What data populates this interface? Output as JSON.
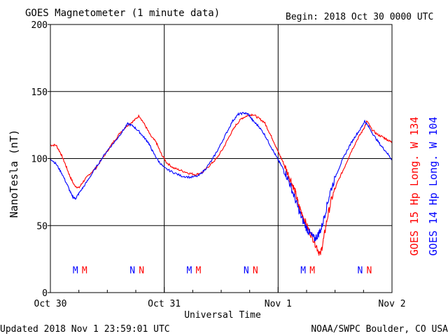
{
  "header": {
    "title": "GOES Magnetometer (1 minute data)",
    "begin": "Begin:  2018 Oct 30 0000 UTC"
  },
  "footer": {
    "updated": "Updated 2018 Nov  1 23:59:01 UTC",
    "source": "NOAA/SWPC Boulder, CO USA"
  },
  "colors": {
    "series1": "#ff0000",
    "series2": "#0000ff",
    "axis": "#000000"
  },
  "chart_data": {
    "type": "line",
    "title": "GOES Magnetometer (1 minute data)",
    "xlabel": "Universal Time",
    "ylabel": "NanoTesla (nT)",
    "xlim": [
      0,
      3
    ],
    "ylim": [
      0,
      200
    ],
    "x_unit": "days since 2018 Oct 30 0000 UTC",
    "x_tick_labels": [
      "Oct 30",
      "Oct 31",
      "Nov 1",
      "Nov 2"
    ],
    "y_ticks": [
      0,
      50,
      100,
      150,
      200
    ],
    "grid": true,
    "legend_position": "right (vertical text)",
    "series": [
      {
        "name": "GOES 15 Hp  Long. W 134",
        "color": "#ff0000",
        "points": [
          [
            0.0,
            110
          ],
          [
            0.05,
            110
          ],
          [
            0.09,
            104
          ],
          [
            0.13,
            96
          ],
          [
            0.17,
            87
          ],
          [
            0.21,
            80
          ],
          [
            0.25,
            78
          ],
          [
            0.29,
            83
          ],
          [
            0.34,
            88
          ],
          [
            0.4,
            93
          ],
          [
            0.48,
            103
          ],
          [
            0.55,
            112
          ],
          [
            0.62,
            120
          ],
          [
            0.68,
            125
          ],
          [
            0.73,
            128
          ],
          [
            0.78,
            132
          ],
          [
            0.83,
            125
          ],
          [
            0.88,
            117
          ],
          [
            0.93,
            112
          ],
          [
            0.97,
            104
          ],
          [
            1.02,
            97
          ],
          [
            1.08,
            93
          ],
          [
            1.15,
            91
          ],
          [
            1.22,
            89
          ],
          [
            1.28,
            88
          ],
          [
            1.34,
            90
          ],
          [
            1.4,
            95
          ],
          [
            1.46,
            100
          ],
          [
            1.52,
            108
          ],
          [
            1.58,
            118
          ],
          [
            1.63,
            125
          ],
          [
            1.68,
            130
          ],
          [
            1.73,
            132
          ],
          [
            1.78,
            133
          ],
          [
            1.83,
            130
          ],
          [
            1.88,
            127
          ],
          [
            1.92,
            120
          ],
          [
            1.96,
            113
          ],
          [
            2.0,
            105
          ],
          [
            2.04,
            98
          ],
          [
            2.08,
            90
          ],
          [
            2.12,
            82
          ],
          [
            2.15,
            75
          ],
          [
            2.18,
            65
          ],
          [
            2.22,
            57
          ],
          [
            2.26,
            48
          ],
          [
            2.3,
            42
          ],
          [
            2.34,
            34
          ],
          [
            2.37,
            28
          ],
          [
            2.4,
            40
          ],
          [
            2.43,
            55
          ],
          [
            2.47,
            70
          ],
          [
            2.52,
            82
          ],
          [
            2.58,
            93
          ],
          [
            2.64,
            105
          ],
          [
            2.7,
            115
          ],
          [
            2.75,
            122
          ],
          [
            2.78,
            128
          ],
          [
            2.82,
            122
          ],
          [
            2.87,
            118
          ],
          [
            2.92,
            116
          ],
          [
            2.96,
            114
          ],
          [
            3.0,
            112
          ]
        ]
      },
      {
        "name": "GOES 14 Hp  Long. W 104",
        "color": "#0000ff",
        "points": [
          [
            0.0,
            100
          ],
          [
            0.05,
            96
          ],
          [
            0.1,
            89
          ],
          [
            0.15,
            80
          ],
          [
            0.19,
            72
          ],
          [
            0.22,
            70
          ],
          [
            0.25,
            74
          ],
          [
            0.3,
            80
          ],
          [
            0.36,
            88
          ],
          [
            0.42,
            96
          ],
          [
            0.5,
            106
          ],
          [
            0.57,
            113
          ],
          [
            0.63,
            120
          ],
          [
            0.68,
            126
          ],
          [
            0.73,
            124
          ],
          [
            0.78,
            120
          ],
          [
            0.82,
            116
          ],
          [
            0.86,
            112
          ],
          [
            0.9,
            105
          ],
          [
            0.95,
            98
          ],
          [
            1.0,
            93
          ],
          [
            1.07,
            90
          ],
          [
            1.15,
            87
          ],
          [
            1.23,
            86
          ],
          [
            1.3,
            87
          ],
          [
            1.36,
            92
          ],
          [
            1.42,
            99
          ],
          [
            1.48,
            108
          ],
          [
            1.54,
            118
          ],
          [
            1.6,
            128
          ],
          [
            1.65,
            133
          ],
          [
            1.7,
            134
          ],
          [
            1.74,
            133
          ],
          [
            1.78,
            128
          ],
          [
            1.83,
            124
          ],
          [
            1.88,
            118
          ],
          [
            1.93,
            110
          ],
          [
            1.98,
            102
          ],
          [
            2.02,
            96
          ],
          [
            2.06,
            90
          ],
          [
            2.1,
            82
          ],
          [
            2.14,
            72
          ],
          [
            2.18,
            62
          ],
          [
            2.21,
            55
          ],
          [
            2.25,
            48
          ],
          [
            2.28,
            44
          ],
          [
            2.32,
            40
          ],
          [
            2.35,
            43
          ],
          [
            2.38,
            48
          ],
          [
            2.42,
            62
          ],
          [
            2.46,
            76
          ],
          [
            2.51,
            88
          ],
          [
            2.57,
            100
          ],
          [
            2.63,
            110
          ],
          [
            2.68,
            117
          ],
          [
            2.73,
            123
          ],
          [
            2.76,
            128
          ],
          [
            2.8,
            123
          ],
          [
            2.85,
            116
          ],
          [
            2.9,
            110
          ],
          [
            2.95,
            105
          ],
          [
            3.0,
            99
          ]
        ]
      }
    ],
    "markers": [
      {
        "label": "M",
        "x": 0.22,
        "color": "#0000ff"
      },
      {
        "label": "M",
        "x": 0.3,
        "color": "#ff0000"
      },
      {
        "label": "N",
        "x": 0.72,
        "color": "#0000ff"
      },
      {
        "label": "N",
        "x": 0.8,
        "color": "#ff0000"
      },
      {
        "label": "M",
        "x": 1.22,
        "color": "#0000ff"
      },
      {
        "label": "M",
        "x": 1.3,
        "color": "#ff0000"
      },
      {
        "label": "N",
        "x": 1.72,
        "color": "#0000ff"
      },
      {
        "label": "N",
        "x": 1.8,
        "color": "#ff0000"
      },
      {
        "label": "M",
        "x": 2.22,
        "color": "#0000ff"
      },
      {
        "label": "M",
        "x": 2.3,
        "color": "#ff0000"
      },
      {
        "label": "N",
        "x": 2.72,
        "color": "#0000ff"
      },
      {
        "label": "N",
        "x": 2.8,
        "color": "#ff0000"
      }
    ],
    "marker_y": 17
  }
}
